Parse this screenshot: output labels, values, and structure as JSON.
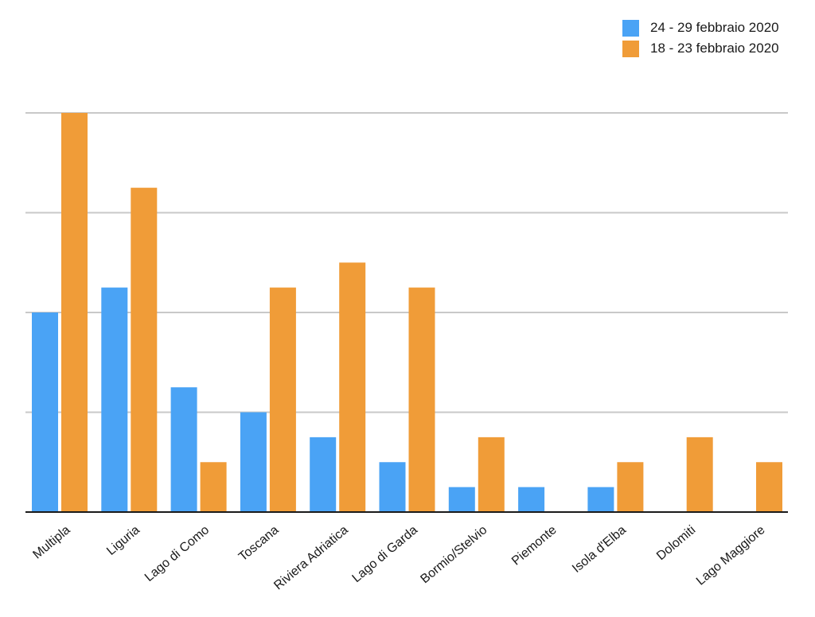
{
  "chart_data": {
    "type": "bar",
    "categories": [
      "Multipla",
      "Liguria",
      "Lago di Como",
      "Toscana",
      "Riviera Adriatica",
      "Lago di Garda",
      "Bormio/Stelvio",
      "Piemonte",
      "Isola d'Elba",
      "Dolomiti",
      "Lago Maggiore"
    ],
    "series": [
      {
        "name": "24 - 29 febbraio 2020",
        "color": "#4aa3f5",
        "values": [
          8,
          9,
          5,
          4,
          3,
          2,
          1,
          1,
          1,
          0,
          0
        ]
      },
      {
        "name": "18 - 23 febbraio 2020",
        "color": "#f09c38",
        "values": [
          16,
          13,
          2,
          9,
          10,
          9,
          3,
          0,
          2,
          3,
          2
        ]
      }
    ],
    "ylim": [
      0,
      16
    ],
    "grid": true,
    "legend_position": "top-right",
    "title": "",
    "xlabel": "",
    "ylabel": ""
  }
}
